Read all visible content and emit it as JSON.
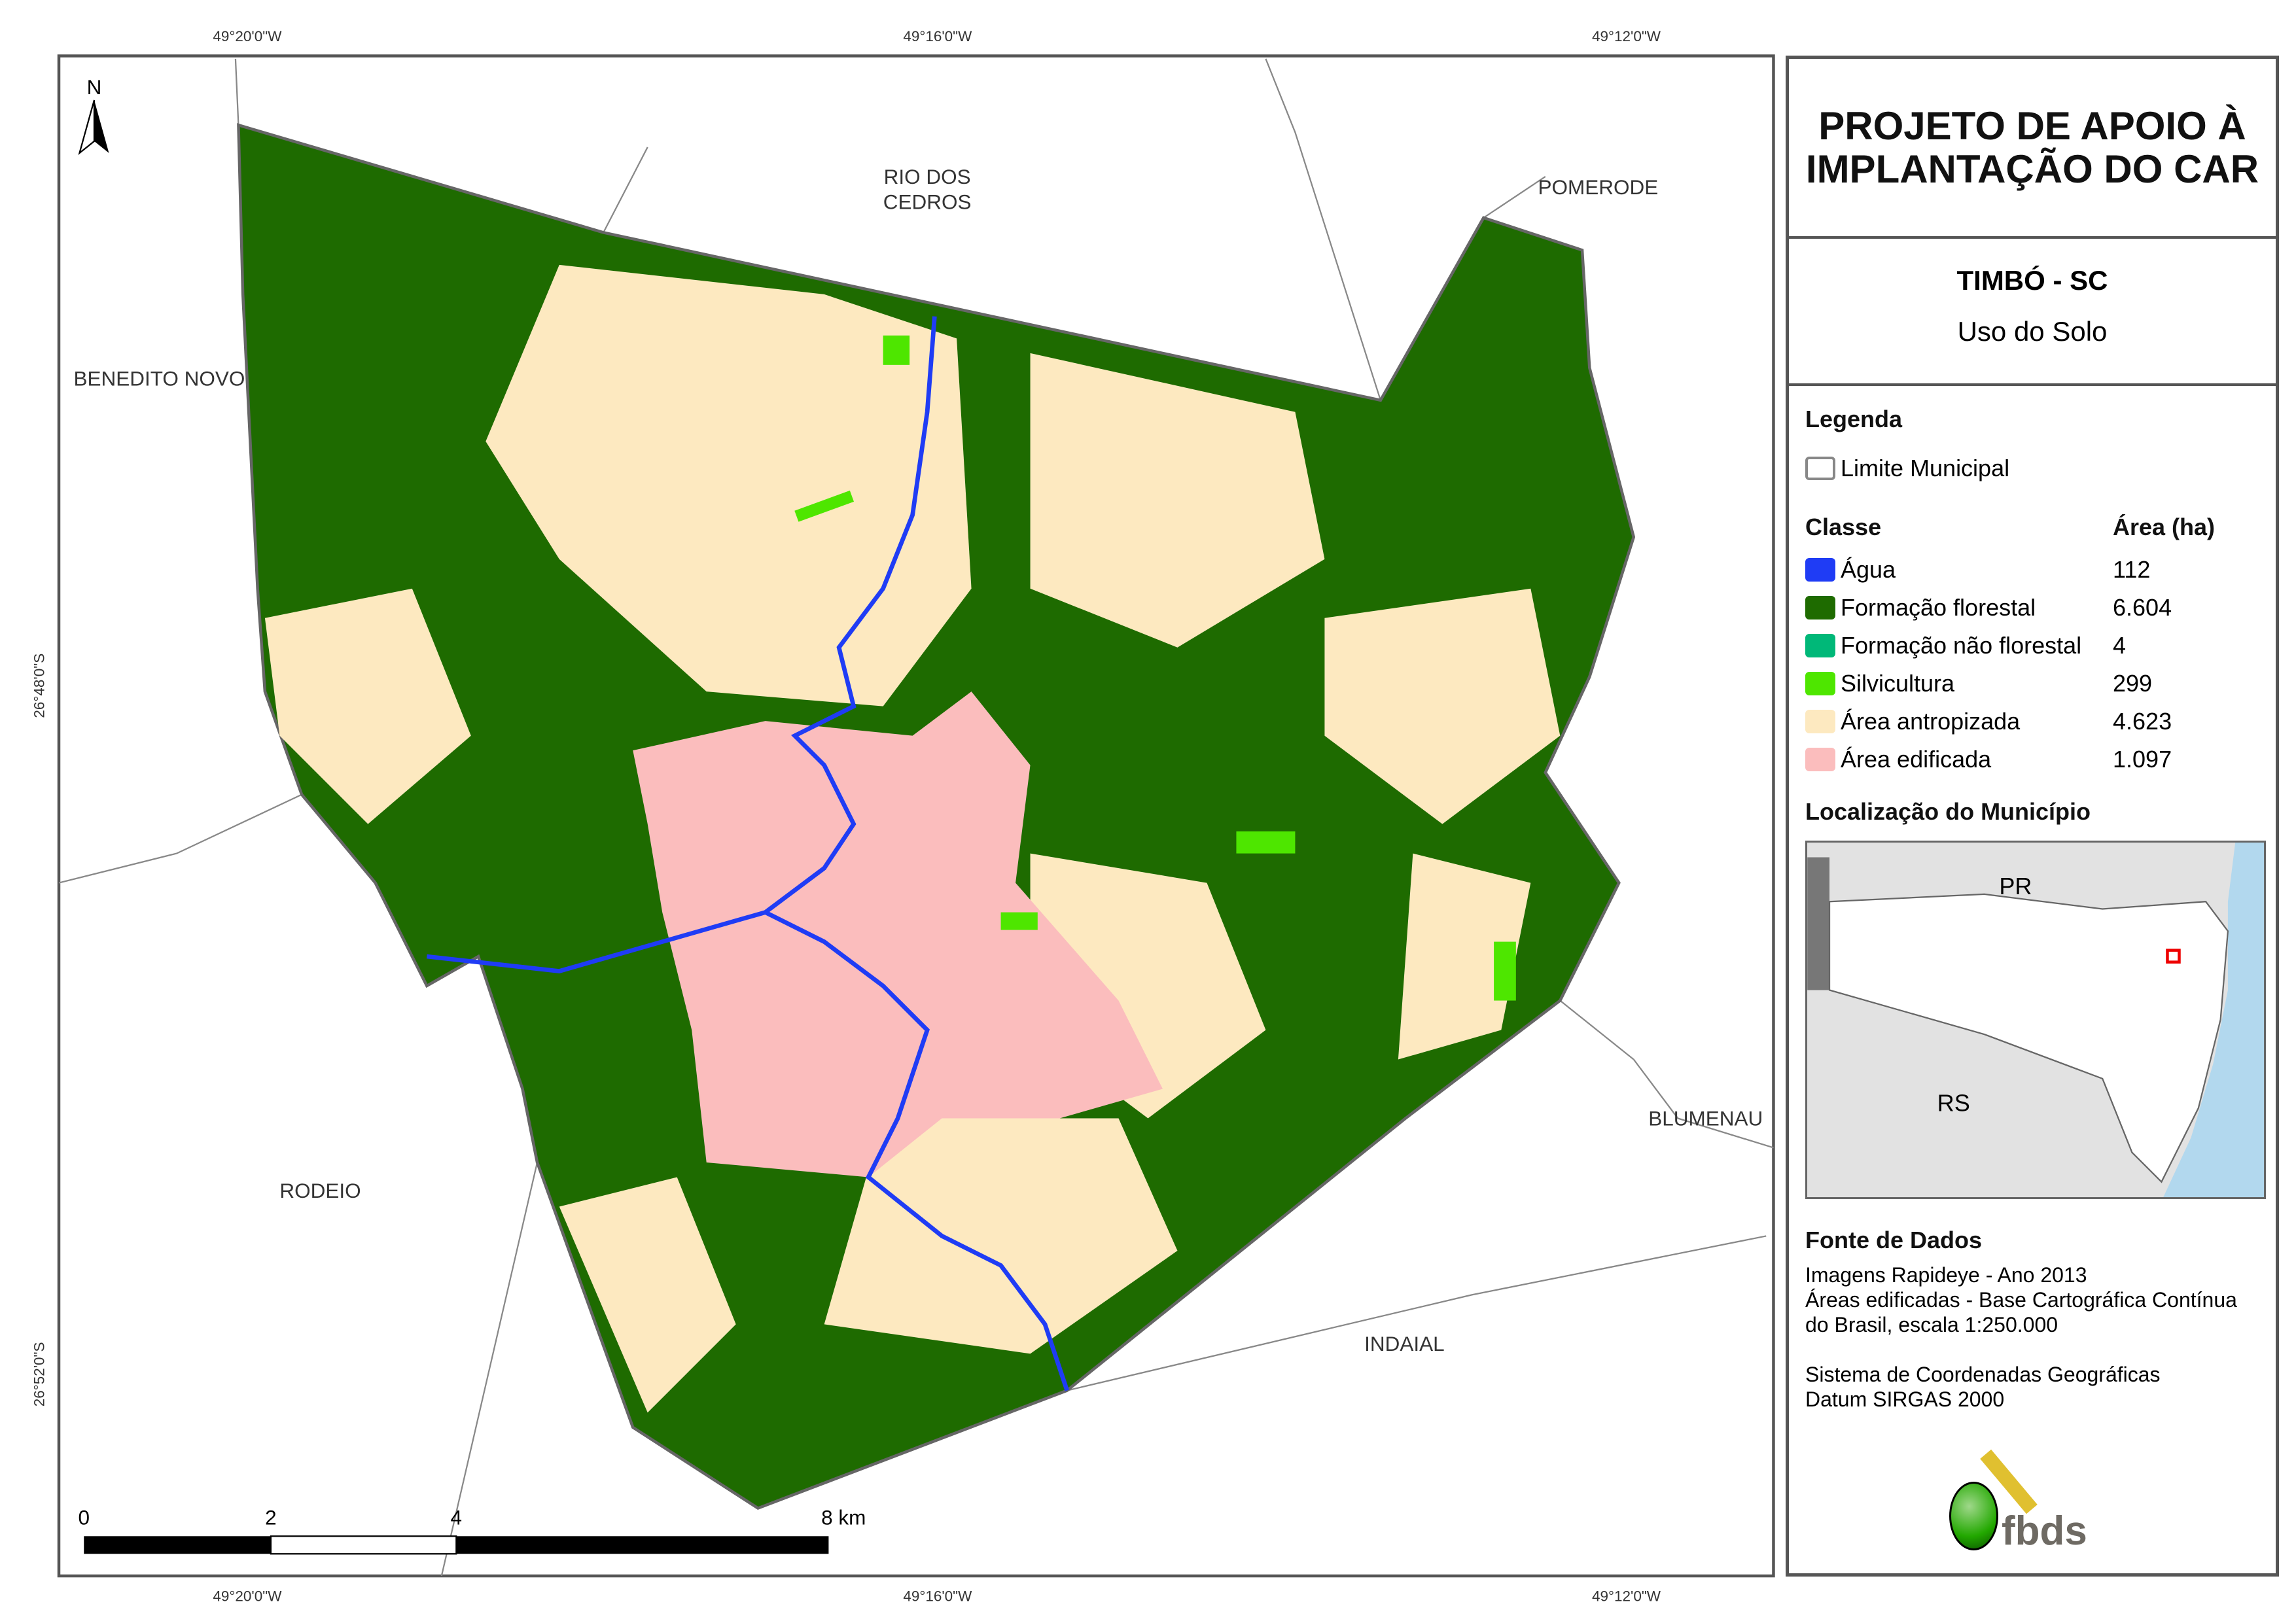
{
  "title": "PROJETO DE APOIO À IMPLANTAÇÃO DO CAR",
  "municipality": "TIMBÓ - SC",
  "subtitle": "Uso do Solo",
  "legend": {
    "heading": "Legenda",
    "boundary_label": "Limite Municipal",
    "class_header": "Classe",
    "area_header": "Área (ha)",
    "classes": [
      {
        "name": "Água",
        "area": "112",
        "color": "#1f3cf5"
      },
      {
        "name": "Formação florestal",
        "area": "6.604",
        "color": "#1e6b00"
      },
      {
        "name": "Formação não florestal",
        "area": "4",
        "color": "#00b878"
      },
      {
        "name": "Silvicultura",
        "area": "299",
        "color": "#4ee600"
      },
      {
        "name": "Área antropizada",
        "area": "4.623",
        "color": "#fde9c0"
      },
      {
        "name": "Área edificada",
        "area": "1.097",
        "color": "#fbbdbd"
      }
    ]
  },
  "location": {
    "heading": "Localização do Município",
    "labels": [
      "PR",
      "RS"
    ]
  },
  "sources": {
    "heading": "Fonte de Dados",
    "lines": [
      "Imagens Rapideye - Ano 2013",
      "Áreas edificadas - Base Cartográfica Contínua",
      "do Brasil, escala 1:250.000",
      "",
      "Sistema de Coordenadas Geográficas",
      "Datum SIRGAS 2000"
    ]
  },
  "logo": "fbds",
  "map": {
    "north": "N",
    "neighbors": [
      "RIO DOS",
      "CEDROS",
      "POMERODE",
      "BENEDITO NOVO",
      "RODEIO",
      "BLUMENAU",
      "INDAIAL"
    ],
    "lon_ticks": [
      "49°20'0\"W",
      "49°16'0\"W",
      "49°12'0\"W"
    ],
    "lat_ticks": [
      "26°48'0\"S",
      "26°52'0\"S"
    ],
    "scale": [
      "0",
      "2",
      "4",
      "8 km"
    ]
  }
}
